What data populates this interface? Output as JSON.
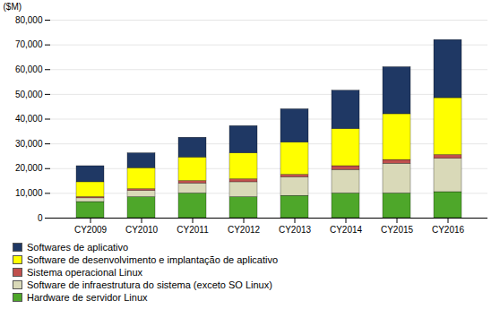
{
  "chart_data": {
    "type": "bar",
    "stacked": true,
    "categories": [
      "CY2009",
      "CY2010",
      "CY2011",
      "CY2012",
      "CY2013",
      "CY2014",
      "CY2015",
      "CY2016"
    ],
    "series": [
      {
        "name": "Hardware de servidor Linux",
        "color": "#4EA72A",
        "values": [
          6500,
          8500,
          10000,
          8500,
          9000,
          10000,
          10000,
          10500
        ]
      },
      {
        "name": "Software de infraestrutura do sistema (exceto SO Linux)",
        "color": "#D9D9B8",
        "values": [
          1500,
          2500,
          4000,
          6000,
          7500,
          9500,
          12000,
          13500
        ]
      },
      {
        "name": "Sistema operacional Linux",
        "color": "#C0504D",
        "values": [
          500,
          700,
          1000,
          1200,
          1000,
          1500,
          1500,
          1500
        ]
      },
      {
        "name": "Software de desenvolvimento e implantação de aplicativo",
        "color": "#FFFF00",
        "values": [
          6000,
          8500,
          9500,
          10500,
          13000,
          15000,
          18500,
          23000
        ]
      },
      {
        "name": "Softwares de aplicativo",
        "color": "#1F3864",
        "values": [
          6500,
          6000,
          8000,
          11000,
          13500,
          15500,
          19000,
          23500
        ]
      }
    ],
    "ylabel": "($M)",
    "ylim": [
      0,
      80000
    ],
    "yticks": [
      0,
      {
        "value": 10000,
        "label": "10,000"
      },
      {
        "value": 20000,
        "label": "20,000"
      },
      {
        "value": 30000,
        "label": "30,000"
      },
      {
        "value": 40000,
        "label": "40,000"
      },
      {
        "value": 50000,
        "label": "50,000"
      },
      {
        "value": 60000,
        "label": "60,000"
      },
      {
        "value": 70000,
        "label": "70,000"
      },
      {
        "value": 80000,
        "label": "80,000"
      }
    ],
    "grid": true,
    "legend": "bottom"
  }
}
